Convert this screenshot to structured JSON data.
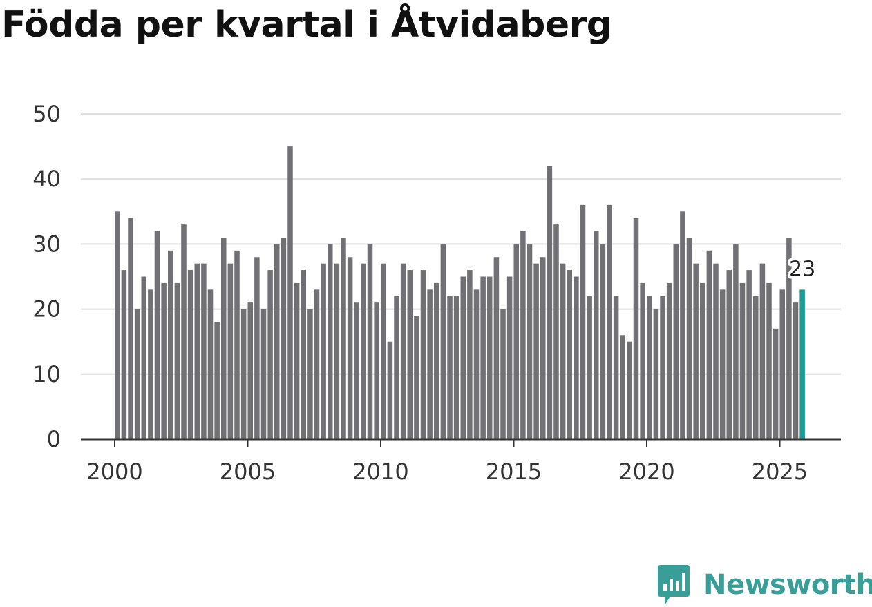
{
  "title": "Födda per kvartal i Åtvidaberg",
  "brand": {
    "name": "Newsworthy",
    "icon": "newsworthy-logo-icon",
    "color": "#3a9e98"
  },
  "colors": {
    "bar": "#717074",
    "highlight": "#1a9d96",
    "grid": "#dddddd",
    "axis": "#333333",
    "tick_text": "#333333"
  },
  "chart_data": {
    "type": "bar",
    "title": "Födda per kvartal i Åtvidaberg",
    "xlabel": "",
    "ylabel": "",
    "ylim": [
      0,
      50
    ],
    "yticks": [
      "0",
      "10",
      "20",
      "30",
      "40",
      "50"
    ],
    "xticks": [
      "2000",
      "2005",
      "2010",
      "2015",
      "2020",
      "2025"
    ],
    "xlim": [
      2000,
      2026
    ],
    "grid": true,
    "start_year": 2000,
    "periods_per_year": 4,
    "values": [
      35,
      26,
      34,
      20,
      25,
      23,
      32,
      24,
      29,
      24,
      33,
      26,
      27,
      27,
      23,
      18,
      31,
      27,
      29,
      20,
      21,
      28,
      20,
      26,
      30,
      31,
      45,
      24,
      26,
      20,
      23,
      27,
      30,
      27,
      31,
      28,
      21,
      27,
      30,
      21,
      27,
      15,
      22,
      27,
      26,
      19,
      26,
      23,
      24,
      30,
      22,
      22,
      25,
      26,
      23,
      25,
      25,
      28,
      20,
      25,
      30,
      32,
      30,
      27,
      28,
      42,
      33,
      27,
      26,
      25,
      36,
      22,
      32,
      30,
      36,
      22,
      16,
      15,
      34,
      24,
      22,
      20,
      22,
      24,
      30,
      35,
      31,
      27,
      24,
      29,
      27,
      23,
      26,
      30,
      24,
      26,
      22,
      27,
      24,
      17,
      23,
      31,
      21,
      23
    ],
    "highlight_index": 103,
    "highlight_label": "23"
  }
}
